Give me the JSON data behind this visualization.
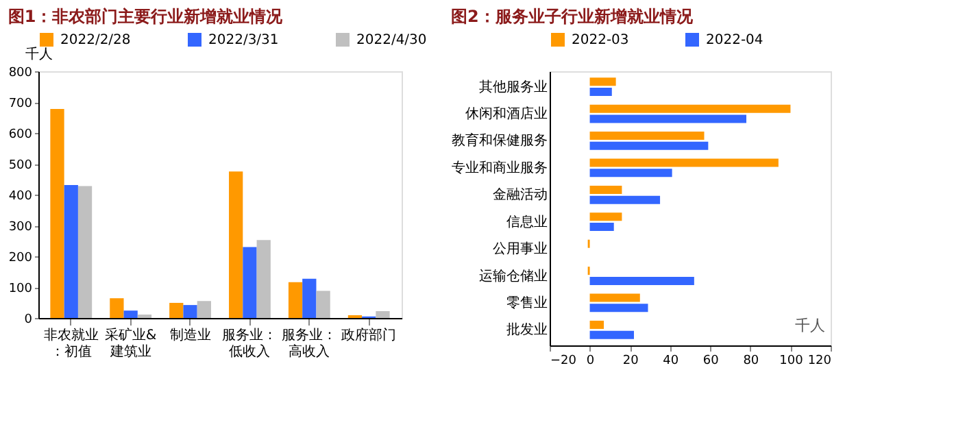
{
  "chart_data": [
    {
      "type": "bar",
      "title": "图1：非农部门主要行业新增就业情况",
      "ylabel": "千人",
      "categories": [
        "非农就业：初值",
        "采矿业&建筑业",
        "制造业",
        "服务业：低收入",
        "服务业：高收入",
        "政府部门"
      ],
      "series": [
        {
          "name": "2022/2/28",
          "color": "#ff9900",
          "values": [
            678,
            64,
            49,
            475,
            116,
            9
          ]
        },
        {
          "name": "2022/3/31",
          "color": "#3366ff",
          "values": [
            431,
            24,
            42,
            230,
            127,
            5
          ]
        },
        {
          "name": "2022/4/30",
          "color": "#c0c0c0",
          "values": [
            428,
            11,
            55,
            253,
            88,
            22
          ]
        }
      ],
      "ylim": [
        0,
        800
      ],
      "yticks": [
        0,
        100,
        200,
        300,
        400,
        500,
        600,
        700,
        800
      ],
      "grid": false,
      "legend": "top"
    },
    {
      "type": "bar",
      "orientation": "horizontal",
      "title": "图2：服务业子行业新增就业情况",
      "xlabel": "千人",
      "categories": [
        "其他服务业",
        "休闲和酒店业",
        "教育和保健服务",
        "专业和商业服务",
        "金融活动",
        "信息业",
        "公用事业",
        "运输仓储业",
        "零售业",
        "批发业"
      ],
      "series": [
        {
          "name": "2022-03",
          "color": "#ff9900",
          "values": [
            13,
            100,
            57,
            94,
            16,
            16,
            -1,
            -1,
            25,
            7
          ]
        },
        {
          "name": "2022-04",
          "color": "#3366ff",
          "values": [
            11,
            78,
            59,
            41,
            35,
            12,
            0,
            52,
            29,
            22
          ]
        }
      ],
      "xlim": [
        -20,
        120
      ],
      "xticks": [
        -20,
        0,
        20,
        40,
        60,
        80,
        100,
        120
      ],
      "grid": false,
      "legend": "top"
    }
  ]
}
